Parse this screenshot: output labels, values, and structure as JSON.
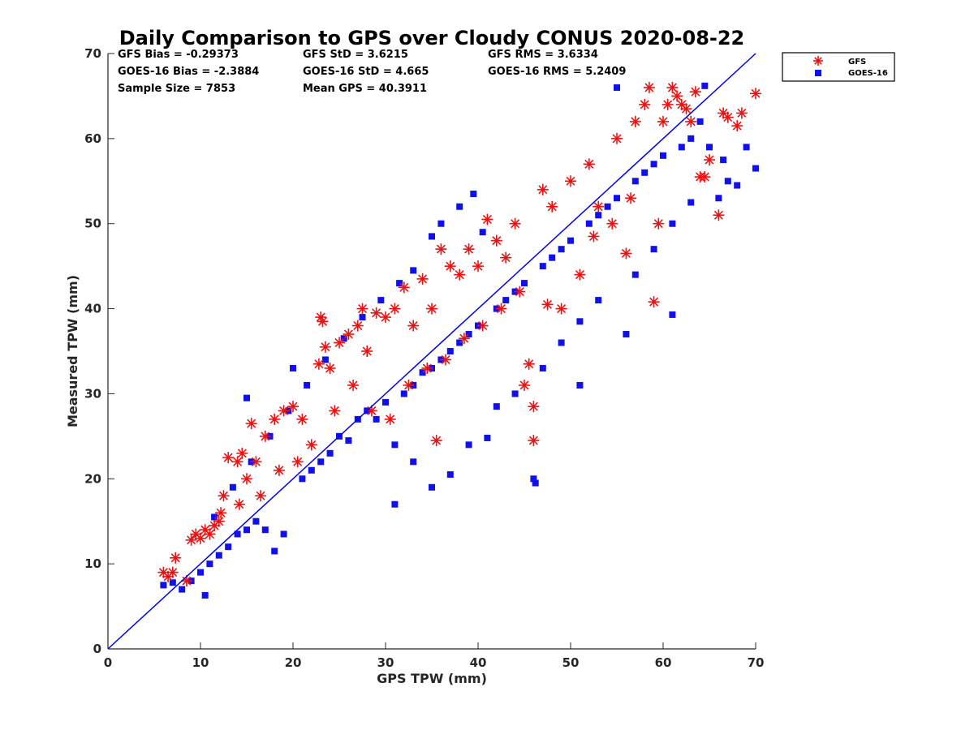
{
  "chart_data": {
    "type": "scatter",
    "title": "Daily Comparison to GPS over Cloudy CONUS 2020-08-22",
    "xlabel": "GPS TPW (mm)",
    "ylabel": "Measured TPW (mm)",
    "xlim": [
      0,
      70
    ],
    "ylim": [
      0,
      70
    ],
    "xticks": [
      "0",
      "10",
      "20",
      "30",
      "40",
      "50",
      "60",
      "70"
    ],
    "yticks": [
      "0",
      "10",
      "20",
      "30",
      "40",
      "50",
      "60",
      "70"
    ],
    "grid": false,
    "legend_position": "outside-top-right",
    "reference_line": {
      "type": "identity",
      "from": [
        0,
        0
      ],
      "to": [
        70,
        70
      ],
      "color": "#0000ee"
    },
    "stats": [
      [
        "GFS Bias = -0.29373",
        "GFS StD = 3.6215",
        "GFS RMS = 3.6334"
      ],
      [
        "GOES-16 Bias = -2.3884",
        "GOES-16 StD = 4.665",
        "GOES-16 RMS = 5.2409"
      ],
      [
        "Sample Size = 7853",
        "Mean GPS = 40.3911",
        ""
      ]
    ],
    "series": [
      {
        "name": "GFS",
        "marker": "asterisk",
        "color": "#ee1111",
        "points": [
          [
            6.0,
            9.0
          ],
          [
            6.5,
            8.5
          ],
          [
            7.0,
            9.0
          ],
          [
            7.3,
            10.7
          ],
          [
            8.5,
            8.0
          ],
          [
            9.0,
            12.8
          ],
          [
            9.5,
            13.5
          ],
          [
            10.0,
            13.0
          ],
          [
            10.5,
            14.0
          ],
          [
            11.0,
            13.5
          ],
          [
            11.5,
            14.5
          ],
          [
            12.0,
            15.0
          ],
          [
            12.5,
            18.0
          ],
          [
            13.0,
            22.5
          ],
          [
            14.0,
            22.0
          ],
          [
            14.5,
            23.0
          ],
          [
            15.0,
            20.0
          ],
          [
            15.5,
            26.5
          ],
          [
            16.0,
            22.0
          ],
          [
            17.0,
            25.0
          ],
          [
            18.0,
            27.0
          ],
          [
            19.0,
            28.0
          ],
          [
            20.0,
            28.5
          ],
          [
            21.0,
            27.0
          ],
          [
            22.0,
            24.0
          ],
          [
            23.0,
            39.0
          ],
          [
            23.2,
            38.5
          ],
          [
            23.5,
            35.5
          ],
          [
            22.8,
            33.5
          ],
          [
            24.0,
            33.0
          ],
          [
            25.0,
            36.0
          ],
          [
            26.0,
            37.0
          ],
          [
            27.0,
            38.0
          ],
          [
            27.5,
            40.0
          ],
          [
            28.0,
            35.0
          ],
          [
            29.0,
            39.5
          ],
          [
            30.0,
            39.0
          ],
          [
            31.0,
            40.0
          ],
          [
            32.0,
            42.5
          ],
          [
            33.0,
            38.0
          ],
          [
            34.0,
            43.5
          ],
          [
            35.0,
            40.0
          ],
          [
            36.0,
            47.0
          ],
          [
            37.0,
            45.0
          ],
          [
            38.0,
            44.0
          ],
          [
            39.0,
            47.0
          ],
          [
            40.0,
            45.0
          ],
          [
            41.0,
            50.5
          ],
          [
            42.0,
            48.0
          ],
          [
            43.0,
            46.0
          ],
          [
            44.0,
            50.0
          ],
          [
            45.0,
            31.0
          ],
          [
            46.0,
            28.5
          ],
          [
            46.0,
            24.5
          ],
          [
            47.0,
            54.0
          ],
          [
            48.0,
            52.0
          ],
          [
            49.0,
            40.0
          ],
          [
            50.0,
            55.0
          ],
          [
            51.0,
            44.0
          ],
          [
            52.0,
            57.0
          ],
          [
            53.0,
            52.0
          ],
          [
            55.0,
            60.0
          ],
          [
            56.0,
            46.5
          ],
          [
            57.0,
            62.0
          ],
          [
            58.0,
            64.0
          ],
          [
            58.5,
            66.0
          ],
          [
            59.0,
            40.8
          ],
          [
            59.5,
            50.0
          ],
          [
            60.0,
            62.0
          ],
          [
            60.5,
            64.0
          ],
          [
            61.0,
            66.0
          ],
          [
            61.5,
            65.0
          ],
          [
            62.0,
            64.0
          ],
          [
            62.5,
            63.5
          ],
          [
            63.0,
            62.0
          ],
          [
            63.5,
            65.5
          ],
          [
            64.0,
            55.5
          ],
          [
            64.5,
            55.5
          ],
          [
            65.0,
            57.5
          ],
          [
            66.0,
            51.0
          ],
          [
            66.5,
            63.0
          ],
          [
            67.0,
            62.5
          ],
          [
            68.0,
            61.5
          ],
          [
            68.5,
            63.0
          ],
          [
            70.0,
            65.3
          ],
          [
            30.5,
            27.0
          ],
          [
            32.5,
            31.0
          ],
          [
            34.5,
            33.0
          ],
          [
            36.5,
            34.0
          ],
          [
            38.5,
            36.5
          ],
          [
            40.5,
            38.0
          ],
          [
            42.5,
            40.0
          ],
          [
            44.5,
            42.0
          ],
          [
            28.5,
            28.0
          ],
          [
            26.5,
            31.0
          ],
          [
            24.5,
            28.0
          ],
          [
            20.5,
            22.0
          ],
          [
            18.5,
            21.0
          ],
          [
            16.5,
            18.0
          ],
          [
            14.2,
            17.0
          ],
          [
            12.2,
            16.0
          ],
          [
            35.5,
            24.5
          ],
          [
            45.5,
            33.5
          ],
          [
            47.5,
            40.5
          ],
          [
            52.5,
            48.5
          ],
          [
            54.5,
            50.0
          ],
          [
            56.5,
            53.0
          ]
        ]
      },
      {
        "name": "GOES-16",
        "marker": "square",
        "color": "#1010ee",
        "points": [
          [
            6.0,
            7.5
          ],
          [
            7.0,
            7.8
          ],
          [
            8.0,
            7.0
          ],
          [
            9.0,
            8.0
          ],
          [
            10.0,
            9.0
          ],
          [
            10.5,
            6.3
          ],
          [
            11.0,
            10.0
          ],
          [
            12.0,
            11.0
          ],
          [
            13.0,
            12.0
          ],
          [
            14.0,
            13.5
          ],
          [
            15.0,
            14.0
          ],
          [
            16.0,
            15.0
          ],
          [
            17.0,
            14.0
          ],
          [
            18.0,
            11.5
          ],
          [
            19.0,
            13.5
          ],
          [
            20.0,
            33.0
          ],
          [
            21.0,
            20.0
          ],
          [
            22.0,
            21.0
          ],
          [
            15.0,
            29.5
          ],
          [
            23.0,
            22.0
          ],
          [
            24.0,
            23.0
          ],
          [
            25.0,
            25.0
          ],
          [
            26.0,
            24.5
          ],
          [
            27.0,
            27.0
          ],
          [
            28.0,
            28.0
          ],
          [
            29.0,
            27.0
          ],
          [
            30.0,
            29.0
          ],
          [
            31.0,
            17.0
          ],
          [
            32.0,
            30.0
          ],
          [
            33.0,
            31.0
          ],
          [
            34.0,
            32.5
          ],
          [
            35.0,
            33.0
          ],
          [
            36.0,
            34.0
          ],
          [
            37.0,
            35.0
          ],
          [
            38.0,
            36.0
          ],
          [
            39.0,
            37.0
          ],
          [
            40.0,
            38.0
          ],
          [
            41.0,
            24.8
          ],
          [
            42.0,
            40.0
          ],
          [
            43.0,
            41.0
          ],
          [
            44.0,
            42.0
          ],
          [
            45.0,
            43.0
          ],
          [
            46.0,
            20.0
          ],
          [
            46.2,
            19.5
          ],
          [
            47.0,
            45.0
          ],
          [
            48.0,
            46.0
          ],
          [
            49.0,
            47.0
          ],
          [
            50.0,
            48.0
          ],
          [
            51.0,
            31.0
          ],
          [
            52.0,
            50.0
          ],
          [
            53.0,
            51.0
          ],
          [
            54.0,
            52.0
          ],
          [
            55.0,
            53.0
          ],
          [
            56.0,
            37.0
          ],
          [
            57.0,
            55.0
          ],
          [
            58.0,
            56.0
          ],
          [
            59.0,
            57.0
          ],
          [
            60.0,
            58.0
          ],
          [
            61.0,
            39.3
          ],
          [
            62.0,
            59.0
          ],
          [
            63.0,
            60.0
          ],
          [
            64.0,
            62.0
          ],
          [
            65.0,
            59.0
          ],
          [
            66.0,
            53.0
          ],
          [
            67.0,
            55.0
          ],
          [
            68.0,
            54.5
          ],
          [
            70.0,
            56.5
          ],
          [
            55.0,
            66.0
          ],
          [
            64.5,
            66.2
          ],
          [
            38.0,
            52.0
          ],
          [
            39.5,
            53.5
          ],
          [
            40.5,
            49.0
          ],
          [
            36.0,
            50.0
          ],
          [
            35.0,
            48.5
          ],
          [
            33.0,
            44.5
          ],
          [
            31.5,
            43.0
          ],
          [
            29.5,
            41.0
          ],
          [
            27.5,
            39.0
          ],
          [
            25.5,
            36.5
          ],
          [
            23.5,
            34.0
          ],
          [
            21.5,
            31.0
          ],
          [
            19.5,
            28.0
          ],
          [
            17.5,
            25.0
          ],
          [
            15.5,
            22.0
          ],
          [
            13.5,
            19.0
          ],
          [
            11.5,
            15.5
          ],
          [
            31.0,
            24.0
          ],
          [
            33.0,
            22.0
          ],
          [
            35.0,
            19.0
          ],
          [
            37.0,
            20.5
          ],
          [
            39.0,
            24.0
          ],
          [
            42.0,
            28.5
          ],
          [
            44.0,
            30.0
          ],
          [
            47.0,
            33.0
          ],
          [
            49.0,
            36.0
          ],
          [
            51.0,
            38.5
          ],
          [
            53.0,
            41.0
          ],
          [
            57.0,
            44.0
          ],
          [
            59.0,
            47.0
          ],
          [
            61.0,
            50.0
          ],
          [
            63.0,
            52.5
          ],
          [
            66.5,
            57.5
          ],
          [
            69.0,
            59.0
          ]
        ]
      }
    ]
  }
}
